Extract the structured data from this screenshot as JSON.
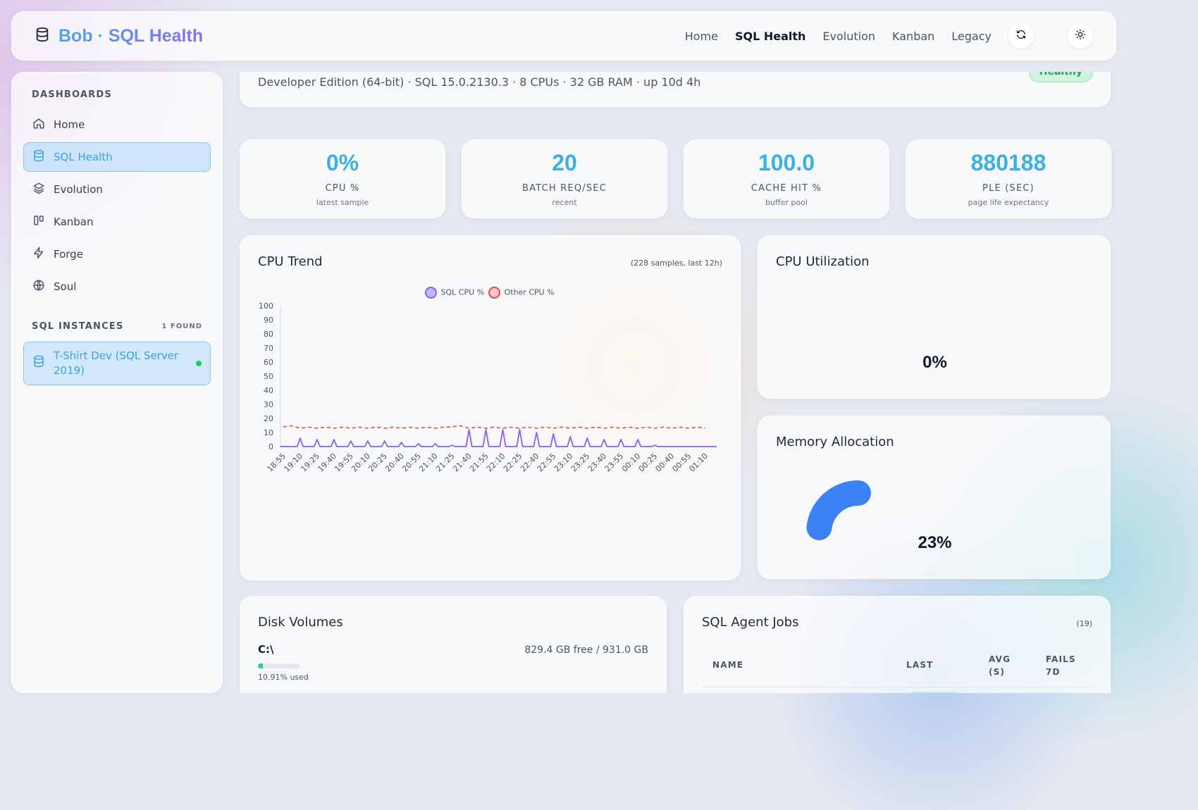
{
  "header": {
    "title": "Bob · SQL Health",
    "nav": [
      "Home",
      "SQL Health",
      "Evolution",
      "Kanban",
      "Legacy"
    ],
    "active_nav": "SQL Health",
    "refresh_icon": "refresh-icon",
    "theme_icon": "sun-icon"
  },
  "sidebar": {
    "dashboards_heading": "DASHBOARDS",
    "items": [
      {
        "label": "Home",
        "icon": "home-icon"
      },
      {
        "label": "SQL Health",
        "icon": "database-icon",
        "active": true
      },
      {
        "label": "Evolution",
        "icon": "layers-icon"
      },
      {
        "label": "Kanban",
        "icon": "kanban-icon"
      },
      {
        "label": "Forge",
        "icon": "bolt-icon"
      },
      {
        "label": "Soul",
        "icon": "globe-icon"
      }
    ],
    "instances_heading": "SQL INSTANCES",
    "instances_count": "1 FOUND",
    "instances": [
      {
        "label": "T-Shirt Dev (SQL Server 2019)",
        "status": "online",
        "status_color": "#22c55e"
      }
    ]
  },
  "server": {
    "info": "Developer Edition (64-bit) · SQL 15.0.2130.3 · 8 CPUs · 32 GB RAM · up 10d 4h",
    "status": "Healthy"
  },
  "stats": [
    {
      "value": "0%",
      "label": "CPU %",
      "sub": "latest sample"
    },
    {
      "value": "20",
      "label": "BATCH REQ/SEC",
      "sub": "recent"
    },
    {
      "value": "100.0",
      "label": "CACHE HIT %",
      "sub": "buffer pool"
    },
    {
      "value": "880188",
      "label": "PLE (SEC)",
      "sub": "page life expectancy"
    }
  ],
  "cpu_trend": {
    "title": "CPU Trend",
    "note": "(228 samples, last 12h)"
  },
  "cpu_util": {
    "title": "CPU Utilization",
    "value": "0%",
    "fraction": 0
  },
  "memory": {
    "title": "Memory Allocation",
    "value": "23%",
    "fraction": 0.23,
    "color": "#3b82f6"
  },
  "disk": {
    "title": "Disk Volumes",
    "volumes": [
      {
        "name": "C:\\",
        "free": "829.4 GB free / 931.0 GB",
        "used_label": "10.91% used",
        "used_fraction": 0.1091
      }
    ]
  },
  "jobs": {
    "title": "SQL Agent Jobs",
    "count": "(19)",
    "columns": [
      "NAME",
      "LAST",
      "AVG (S)",
      "FAILS 7D"
    ]
  },
  "chart_data": {
    "type": "line",
    "x": [
      "18:55",
      "19:10",
      "19:25",
      "19:40",
      "19:55",
      "20:10",
      "20:25",
      "20:40",
      "20:55",
      "21:10",
      "21:25",
      "21:40",
      "21:55",
      "22:10",
      "22:25",
      "22:40",
      "22:55",
      "23:10",
      "23:25",
      "23:40",
      "23:55",
      "00:10",
      "00:25",
      "00:40",
      "00:55",
      "01:10"
    ],
    "ylim": [
      0,
      100
    ],
    "yticks": [
      0,
      10,
      20,
      30,
      40,
      50,
      60,
      70,
      80,
      90,
      100
    ],
    "legend_position": "top",
    "series": [
      {
        "name": "SQL CPU %",
        "color": "#8b5cf6",
        "style": "solid",
        "values": [
          0,
          6,
          5,
          5,
          4,
          4,
          4,
          3,
          2,
          2,
          1,
          12,
          12,
          12,
          12,
          10,
          9,
          7,
          6,
          5,
          5,
          5,
          1,
          0,
          0,
          0
        ]
      },
      {
        "name": "Other CPU %",
        "color": "#ef4444",
        "style": "dashed",
        "values": [
          14,
          13,
          13,
          13,
          13,
          13,
          13,
          13,
          13,
          13,
          14,
          13,
          13,
          13,
          13,
          13,
          13,
          13,
          13,
          13,
          13,
          13,
          13,
          13,
          13,
          13
        ]
      }
    ]
  }
}
